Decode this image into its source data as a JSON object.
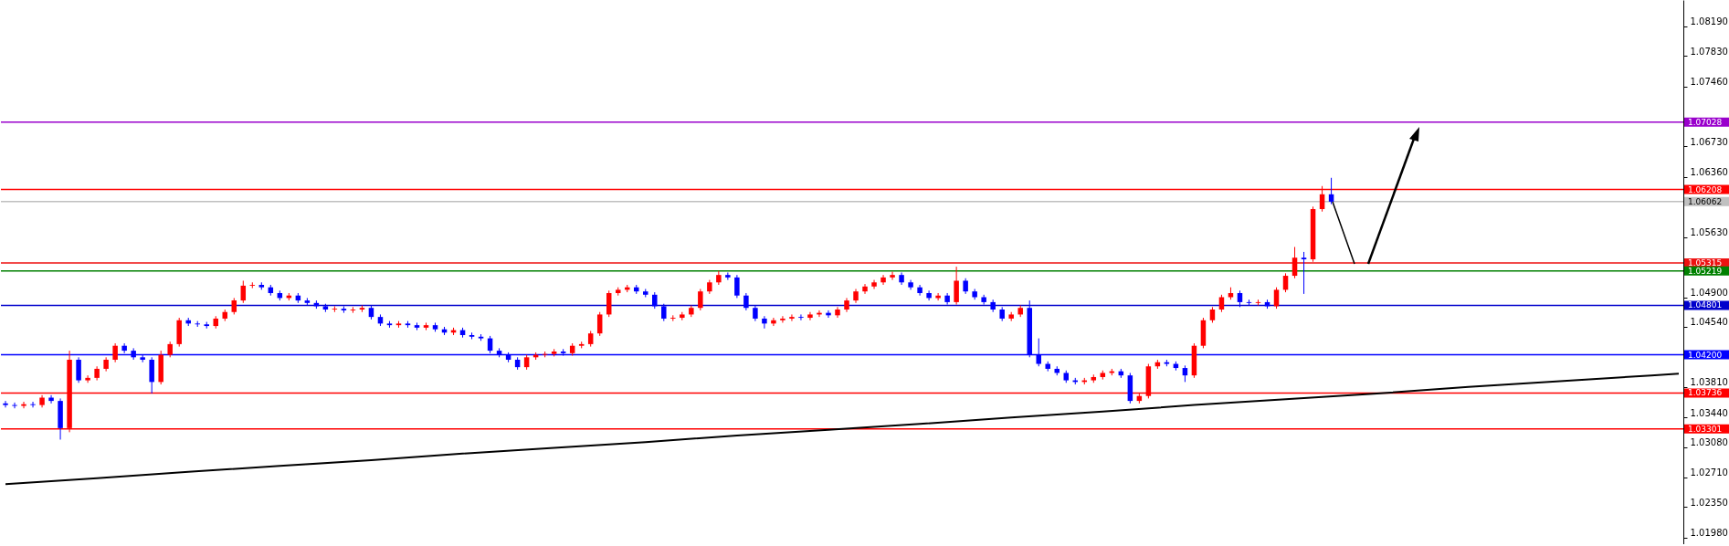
{
  "chart_data": {
    "type": "candlestick",
    "tick_labels": "y",
    "categories": [
      null,
      null,
      null,
      null,
      null,
      null,
      null,
      null,
      null,
      null,
      null,
      null,
      null,
      null,
      null,
      null,
      null,
      null,
      null,
      null,
      null,
      null,
      null,
      null,
      null,
      null,
      null,
      null,
      null,
      null,
      null,
      null,
      null,
      null,
      null,
      null,
      null,
      null,
      null,
      null,
      null,
      null,
      null,
      null,
      null,
      null,
      null,
      null,
      null,
      null,
      null,
      null,
      null,
      null,
      null,
      null,
      null,
      null,
      null,
      null,
      null,
      null,
      null,
      null,
      null,
      null,
      null,
      null,
      null,
      null,
      null,
      null,
      null,
      null,
      null,
      null,
      null,
      null,
      null,
      null,
      null,
      null,
      null,
      null,
      null,
      null,
      null,
      null,
      null,
      null,
      null,
      null,
      null,
      null,
      null,
      null,
      null,
      null,
      null,
      null,
      null,
      null,
      null,
      null,
      null,
      null,
      null,
      null,
      null,
      null,
      null,
      null,
      null,
      null,
      null,
      null,
      null,
      null,
      null,
      null,
      null,
      null,
      null,
      null,
      null,
      null,
      null,
      null,
      null,
      null,
      null,
      null,
      null,
      null,
      null,
      null,
      null,
      null,
      null,
      null,
      null,
      null,
      null,
      null,
      null,
      null,
      null,
      null,
      null,
      null,
      null,
      null,
      null,
      null,
      null,
      null,
      null,
      null,
      null,
      null,
      null,
      null,
      null,
      null,
      null,
      null,
      null,
      null,
      null,
      null,
      null,
      null,
      null,
      null,
      null,
      null,
      null,
      null,
      null,
      null,
      null,
      null,
      null,
      null
    ],
    "ohlc": [
      [
        1.0361,
        1.0364,
        1.0356,
        1.0359
      ],
      [
        1.0359,
        1.0362,
        1.0355,
        1.0358
      ],
      [
        1.0358,
        1.0363,
        1.0355,
        1.036
      ],
      [
        1.036,
        1.0363,
        1.0356,
        1.0359
      ],
      [
        1.0359,
        1.0371,
        1.0356,
        1.0368
      ],
      [
        1.0368,
        1.0371,
        1.0361,
        1.0364
      ],
      [
        1.0364,
        1.0367,
        1.0317,
        1.0331
      ],
      [
        1.0331,
        1.0425,
        1.0326,
        1.0414
      ],
      [
        1.0414,
        1.0417,
        1.0386,
        1.0389
      ],
      [
        1.0389,
        1.0395,
        1.0386,
        1.0392
      ],
      [
        1.0392,
        1.0406,
        1.0389,
        1.0403
      ],
      [
        1.0403,
        1.0417,
        1.04,
        1.0414
      ],
      [
        1.0414,
        1.0434,
        1.0411,
        1.0431
      ],
      [
        1.0431,
        1.0434,
        1.0422,
        1.0425
      ],
      [
        1.0425,
        1.0428,
        1.0414,
        1.0417
      ],
      [
        1.0417,
        1.042,
        1.0411,
        1.0414
      ],
      [
        1.0414,
        1.0417,
        1.0373,
        1.0387
      ],
      [
        1.0387,
        1.0425,
        1.0384,
        1.042
      ],
      [
        1.042,
        1.0436,
        1.0417,
        1.0433
      ],
      [
        1.0433,
        1.0465,
        1.043,
        1.0462
      ],
      [
        1.0462,
        1.0465,
        1.0455,
        1.0458
      ],
      [
        1.0458,
        1.0461,
        1.0454,
        1.0457
      ],
      [
        1.0457,
        1.046,
        1.0452,
        1.0455
      ],
      [
        1.0455,
        1.0467,
        1.0452,
        1.0464
      ],
      [
        1.0464,
        1.0475,
        1.0461,
        1.0472
      ],
      [
        1.0472,
        1.0489,
        1.0469,
        1.0486
      ],
      [
        1.0486,
        1.051,
        1.0483,
        1.0504
      ],
      [
        1.0504,
        1.0508,
        1.0501,
        1.0505
      ],
      [
        1.0505,
        1.0508,
        1.0499,
        1.0502
      ],
      [
        1.0502,
        1.0505,
        1.0492,
        1.0495
      ],
      [
        1.0495,
        1.0498,
        1.0486,
        1.0489
      ],
      [
        1.0489,
        1.0495,
        1.0486,
        1.0492
      ],
      [
        1.0492,
        1.0495,
        1.0483,
        1.0486
      ],
      [
        1.0486,
        1.0489,
        1.048,
        1.0483
      ],
      [
        1.0483,
        1.0486,
        1.0476,
        1.0479
      ],
      [
        1.0479,
        1.0482,
        1.0472,
        1.0475
      ],
      [
        1.0475,
        1.0479,
        1.0472,
        1.0476
      ],
      [
        1.0476,
        1.0479,
        1.0471,
        1.0474
      ],
      [
        1.0474,
        1.0478,
        1.0471,
        1.0475
      ],
      [
        1.0475,
        1.048,
        1.0472,
        1.0477
      ],
      [
        1.0477,
        1.048,
        1.0463,
        1.0466
      ],
      [
        1.0466,
        1.0469,
        1.0455,
        1.0458
      ],
      [
        1.0458,
        1.0461,
        1.0453,
        1.0456
      ],
      [
        1.0456,
        1.0461,
        1.0453,
        1.0458
      ],
      [
        1.0458,
        1.0461,
        1.0453,
        1.0456
      ],
      [
        1.0456,
        1.0459,
        1.045,
        1.0453
      ],
      [
        1.0453,
        1.0459,
        1.045,
        1.0456
      ],
      [
        1.0456,
        1.0459,
        1.0448,
        1.0451
      ],
      [
        1.0451,
        1.0454,
        1.0444,
        1.0447
      ],
      [
        1.0447,
        1.0453,
        1.0444,
        1.045
      ],
      [
        1.045,
        1.0453,
        1.0441,
        1.0444
      ],
      [
        1.0444,
        1.0447,
        1.0439,
        1.0442
      ],
      [
        1.0442,
        1.0445,
        1.0437,
        1.044
      ],
      [
        1.044,
        1.0443,
        1.0422,
        1.0425
      ],
      [
        1.0425,
        1.0428,
        1.0417,
        1.042
      ],
      [
        1.042,
        1.0423,
        1.0411,
        1.0414
      ],
      [
        1.0414,
        1.0417,
        1.0402,
        1.0405
      ],
      [
        1.0405,
        1.042,
        1.0402,
        1.0417
      ],
      [
        1.0417,
        1.0423,
        1.0414,
        1.042
      ],
      [
        1.042,
        1.0424,
        1.0417,
        1.0421
      ],
      [
        1.0421,
        1.0427,
        1.0418,
        1.0424
      ],
      [
        1.0424,
        1.0427,
        1.0419,
        1.0422
      ],
      [
        1.0422,
        1.0434,
        1.0419,
        1.0431
      ],
      [
        1.0431,
        1.0436,
        1.0428,
        1.0433
      ],
      [
        1.0433,
        1.0449,
        1.043,
        1.0446
      ],
      [
        1.0446,
        1.0472,
        1.0443,
        1.0469
      ],
      [
        1.0469,
        1.0498,
        1.0466,
        1.0495
      ],
      [
        1.0495,
        1.0502,
        1.0492,
        1.0499
      ],
      [
        1.0499,
        1.0505,
        1.0496,
        1.0502
      ],
      [
        1.0502,
        1.0505,
        1.0494,
        1.0497
      ],
      [
        1.0497,
        1.05,
        1.049,
        1.0493
      ],
      [
        1.0493,
        1.0496,
        1.0476,
        1.0479
      ],
      [
        1.0479,
        1.0482,
        1.0461,
        1.0464
      ],
      [
        1.0464,
        1.0468,
        1.0461,
        1.0465
      ],
      [
        1.0465,
        1.0472,
        1.0462,
        1.0469
      ],
      [
        1.0469,
        1.048,
        1.0466,
        1.0477
      ],
      [
        1.0477,
        1.05,
        1.0474,
        1.0497
      ],
      [
        1.0497,
        1.0511,
        1.0494,
        1.0508
      ],
      [
        1.0508,
        1.0522,
        1.0505,
        1.0517
      ],
      [
        1.0517,
        1.052,
        1.0511,
        1.0514
      ],
      [
        1.0514,
        1.0517,
        1.0489,
        1.0492
      ],
      [
        1.0492,
        1.0495,
        1.0474,
        1.0477
      ],
      [
        1.0477,
        1.048,
        1.0461,
        1.0464
      ],
      [
        1.0464,
        1.0467,
        1.0452,
        1.0458
      ],
      [
        1.0458,
        1.0465,
        1.0455,
        1.0462
      ],
      [
        1.0462,
        1.0467,
        1.0459,
        1.0464
      ],
      [
        1.0464,
        1.0469,
        1.0461,
        1.0466
      ],
      [
        1.0466,
        1.0469,
        1.0462,
        1.0465
      ],
      [
        1.0465,
        1.0472,
        1.0462,
        1.0469
      ],
      [
        1.0469,
        1.0474,
        1.0466,
        1.0471
      ],
      [
        1.0471,
        1.0474,
        1.0465,
        1.0468
      ],
      [
        1.0468,
        1.0478,
        1.0465,
        1.0475
      ],
      [
        1.0475,
        1.0489,
        1.0472,
        1.0486
      ],
      [
        1.0486,
        1.05,
        1.0483,
        1.0497
      ],
      [
        1.0497,
        1.0506,
        1.0494,
        1.0503
      ],
      [
        1.0503,
        1.0511,
        1.05,
        1.0508
      ],
      [
        1.0508,
        1.0517,
        1.0505,
        1.0514
      ],
      [
        1.0514,
        1.0521,
        1.0511,
        1.0517
      ],
      [
        1.0517,
        1.052,
        1.0505,
        1.0508
      ],
      [
        1.0508,
        1.0511,
        1.0499,
        1.0502
      ],
      [
        1.0502,
        1.0505,
        1.0492,
        1.0495
      ],
      [
        1.0495,
        1.0498,
        1.0486,
        1.0489
      ],
      [
        1.0489,
        1.0495,
        1.0486,
        1.0492
      ],
      [
        1.0492,
        1.0495,
        1.0481,
        1.0484
      ],
      [
        1.0484,
        1.0527,
        1.0481,
        1.051
      ],
      [
        1.051,
        1.0513,
        1.0494,
        1.0497
      ],
      [
        1.0497,
        1.05,
        1.0487,
        1.049
      ],
      [
        1.049,
        1.0493,
        1.0481,
        1.0484
      ],
      [
        1.0484,
        1.0487,
        1.0472,
        1.0475
      ],
      [
        1.0475,
        1.0478,
        1.0461,
        1.0464
      ],
      [
        1.0464,
        1.0472,
        1.0461,
        1.0469
      ],
      [
        1.0469,
        1.048,
        1.0466,
        1.0477
      ],
      [
        1.0477,
        1.0486,
        1.0417,
        1.042
      ],
      [
        1.042,
        1.044,
        1.0406,
        1.0409
      ],
      [
        1.0409,
        1.0412,
        1.04,
        1.0403
      ],
      [
        1.0403,
        1.0406,
        1.0395,
        1.0398
      ],
      [
        1.0398,
        1.0401,
        1.0386,
        1.0389
      ],
      [
        1.0389,
        1.0392,
        1.0384,
        1.0387
      ],
      [
        1.0387,
        1.0392,
        1.0384,
        1.0389
      ],
      [
        1.0389,
        1.0396,
        1.0386,
        1.0393
      ],
      [
        1.0393,
        1.0401,
        1.039,
        1.0398
      ],
      [
        1.0398,
        1.0403,
        1.0395,
        1.04
      ],
      [
        1.04,
        1.0403,
        1.0392,
        1.0395
      ],
      [
        1.0395,
        1.0398,
        1.0361,
        1.0364
      ],
      [
        1.0364,
        1.0373,
        1.0361,
        1.037
      ],
      [
        1.037,
        1.0409,
        1.0367,
        1.0406
      ],
      [
        1.0406,
        1.0414,
        1.0403,
        1.0411
      ],
      [
        1.0411,
        1.0414,
        1.0406,
        1.0409
      ],
      [
        1.0409,
        1.0412,
        1.0401,
        1.0404
      ],
      [
        1.0404,
        1.0407,
        1.0387,
        1.0395
      ],
      [
        1.0395,
        1.0434,
        1.0392,
        1.0431
      ],
      [
        1.0431,
        1.0465,
        1.0428,
        1.0462
      ],
      [
        1.0462,
        1.0478,
        1.0459,
        1.0475
      ],
      [
        1.0475,
        1.0493,
        1.0472,
        1.049
      ],
      [
        1.049,
        1.0502,
        1.0487,
        1.0495
      ],
      [
        1.0495,
        1.0498,
        1.0478,
        1.0484
      ],
      [
        1.0484,
        1.0487,
        1.048,
        1.0483
      ],
      [
        1.0483,
        1.0487,
        1.048,
        1.0484
      ],
      [
        1.0484,
        1.0487,
        1.0476,
        1.0479
      ],
      [
        1.0479,
        1.0502,
        1.0476,
        1.0499
      ],
      [
        1.0499,
        1.0519,
        1.0496,
        1.0516
      ],
      [
        1.0516,
        1.0551,
        1.0513,
        1.0538
      ],
      [
        1.0538,
        1.0545,
        1.0494,
        1.0536
      ],
      [
        1.0536,
        1.06,
        1.0533,
        1.0597
      ],
      [
        1.0597,
        1.0625,
        1.0594,
        1.0615
      ],
      [
        1.0615,
        1.0635,
        1.0603,
        1.0606
      ],
      null,
      null,
      null,
      null,
      null,
      null,
      null,
      null,
      null,
      null,
      null,
      null,
      null,
      null,
      null,
      null,
      null,
      null,
      null,
      null,
      null,
      null,
      null,
      null,
      null,
      null,
      null,
      null,
      null,
      null,
      null,
      null,
      null,
      null,
      null,
      null,
      null,
      null
    ],
    "colors": [
      "#0000ff",
      "#0000ff",
      "#ff0000",
      "#0000ff",
      "#ff0000",
      "#0000ff",
      "#0000ff",
      "#ff0000",
      "#0000ff",
      "#ff0000",
      "#ff0000",
      "#ff0000",
      "#ff0000",
      "#0000ff",
      "#0000ff",
      "#0000ff",
      "#0000ff",
      "#ff0000",
      "#ff0000",
      "#ff0000",
      "#0000ff",
      "#0000ff",
      "#0000ff",
      "#ff0000",
      "#ff0000",
      "#ff0000",
      "#ff0000",
      "#ff0000",
      "#0000ff",
      "#0000ff",
      "#0000ff",
      "#ff0000",
      "#0000ff",
      "#0000ff",
      "#0000ff",
      "#0000ff",
      "#ff0000",
      "#0000ff",
      "#ff0000",
      "#ff0000",
      "#0000ff",
      "#0000ff",
      "#0000ff",
      "#ff0000",
      "#0000ff",
      "#0000ff",
      "#ff0000",
      "#0000ff",
      "#0000ff",
      "#ff0000",
      "#0000ff",
      "#0000ff",
      "#0000ff",
      "#0000ff",
      "#0000ff",
      "#0000ff",
      "#0000ff",
      "#ff0000",
      "#ff0000",
      "#ff0000",
      "#ff0000",
      "#0000ff",
      "#ff0000",
      "#ff0000",
      "#ff0000",
      "#ff0000",
      "#ff0000",
      "#ff0000",
      "#ff0000",
      "#0000ff",
      "#0000ff",
      "#0000ff",
      "#0000ff",
      "#ff0000",
      "#ff0000",
      "#ff0000",
      "#ff0000",
      "#ff0000",
      "#ff0000",
      "#0000ff",
      "#0000ff",
      "#0000ff",
      "#0000ff",
      "#0000ff",
      "#ff0000",
      "#ff0000",
      "#ff0000",
      "#0000ff",
      "#ff0000",
      "#ff0000",
      "#0000ff",
      "#ff0000",
      "#ff0000",
      "#ff0000",
      "#ff0000",
      "#ff0000",
      "#ff0000",
      "#ff0000",
      "#0000ff",
      "#0000ff",
      "#0000ff",
      "#0000ff",
      "#ff0000",
      "#0000ff",
      "#ff0000",
      "#0000ff",
      "#0000ff",
      "#0000ff",
      "#0000ff",
      "#0000ff",
      "#ff0000",
      "#ff0000",
      "#0000ff",
      "#0000ff",
      "#0000ff",
      "#0000ff",
      "#0000ff",
      "#0000ff",
      "#ff0000",
      "#ff0000",
      "#ff0000",
      "#ff0000",
      "#0000ff",
      "#0000ff",
      "#ff0000",
      "#ff0000",
      "#ff0000",
      "#0000ff",
      "#0000ff",
      "#0000ff",
      "#ff0000",
      "#ff0000",
      "#ff0000",
      "#ff0000",
      "#ff0000",
      "#0000ff",
      "#0000ff",
      "#ff0000",
      "#0000ff",
      "#ff0000",
      "#ff0000",
      "#ff0000",
      "#0000ff",
      "#ff0000",
      "#ff0000",
      "#0000ff",
      null,
      null,
      null,
      null,
      null,
      null,
      null,
      null,
      null,
      null,
      null,
      null,
      null,
      null,
      null,
      null,
      null,
      null,
      null,
      null,
      null,
      null,
      null,
      null,
      null,
      null,
      null,
      null,
      null,
      null,
      null,
      null,
      null,
      null,
      null,
      null,
      null,
      null
    ],
    "series": [
      {
        "type": "line",
        "color": "#000000",
        "values": [
          1.0263,
          null,
          null,
          null,
          null,
          null,
          null,
          null,
          null,
          null,
          1.027,
          null,
          null,
          null,
          null,
          null,
          null,
          null,
          null,
          null,
          1.0278,
          null,
          null,
          null,
          null,
          null,
          null,
          null,
          null,
          null,
          1.0285,
          null,
          null,
          null,
          null,
          null,
          null,
          null,
          null,
          null,
          1.0292,
          null,
          null,
          null,
          null,
          null,
          null,
          null,
          null,
          null,
          1.03,
          null,
          null,
          null,
          null,
          null,
          null,
          null,
          null,
          null,
          1.0307,
          null,
          null,
          null,
          null,
          null,
          null,
          null,
          null,
          null,
          1.0314,
          null,
          null,
          null,
          null,
          null,
          null,
          null,
          null,
          null,
          1.0322,
          null,
          null,
          null,
          null,
          null,
          null,
          null,
          null,
          null,
          1.0329,
          null,
          null,
          null,
          null,
          null,
          null,
          null,
          null,
          null,
          1.0336,
          null,
          null,
          null,
          null,
          null,
          null,
          null,
          null,
          null,
          1.0344,
          null,
          null,
          null,
          null,
          null,
          null,
          null,
          null,
          null,
          1.0351,
          null,
          null,
          null,
          null,
          null,
          null,
          null,
          null,
          null,
          1.0359,
          null,
          null,
          null,
          null,
          null,
          null,
          null,
          null,
          null,
          1.0366,
          null,
          null,
          null,
          null,
          null,
          null,
          null,
          null,
          null,
          1.0373,
          null,
          null,
          null,
          null,
          null,
          null,
          null,
          null,
          null,
          1.0381,
          null,
          null,
          null,
          null,
          null,
          null,
          null,
          null,
          null,
          1.0388,
          null,
          null,
          null,
          null,
          null,
          null,
          null,
          null,
          null,
          1.0395,
          null,
          null,
          1.0397
        ]
      }
    ],
    "ylim": [
      1.019,
      1.0851
    ],
    "yticks": [
      {
        "value": 1.0819,
        "label": "1.08190"
      },
      {
        "value": 1.0783,
        "label": "1.07830"
      },
      {
        "value": 1.0746,
        "label": "1.07460"
      },
      {
        "value": 1.0673,
        "label": "1.06730"
      },
      {
        "value": 1.0636,
        "label": "1.06360"
      },
      {
        "value": 1.0563,
        "label": "1.05630"
      },
      {
        "value": 1.049,
        "label": "1.04900"
      },
      {
        "value": 1.0454,
        "label": "1.04540"
      },
      {
        "value": 1.0381,
        "label": "1.03810"
      },
      {
        "value": 1.0344,
        "label": "1.03440"
      },
      {
        "value": 1.0308,
        "label": "1.03080"
      },
      {
        "value": 1.0271,
        "label": "1.02710"
      },
      {
        "value": 1.0235,
        "label": "1.02350"
      },
      {
        "value": 1.0198,
        "label": "1.01980"
      }
    ],
    "ref_lines": [
      {
        "axis": "y",
        "value": 1.07028,
        "label": "1.07028",
        "color": "#9900cc"
      },
      {
        "axis": "y",
        "value": 1.06208,
        "label": "1.06208",
        "color": "#ff0000"
      },
      {
        "axis": "y",
        "value": 1.06062,
        "label": "1.06062",
        "color": "#c0c0c0"
      },
      {
        "axis": "y",
        "value": 1.05315,
        "label": "1.05315",
        "color": "#ee1111"
      },
      {
        "axis": "y",
        "value": 1.05219,
        "label": "1.05219",
        "color": "#008000"
      },
      {
        "axis": "y",
        "value": 1.04801,
        "label": "1.04801",
        "color": "#0000cc"
      },
      {
        "axis": "y",
        "value": 1.042,
        "label": "1.04200",
        "color": "#0000ff"
      },
      {
        "axis": "y",
        "value": 1.03736,
        "label": "1.03736",
        "color": "#ff0000"
      },
      {
        "axis": "y",
        "value": 1.03301,
        "label": "1.03301",
        "color": "#ff0000"
      }
    ]
  }
}
